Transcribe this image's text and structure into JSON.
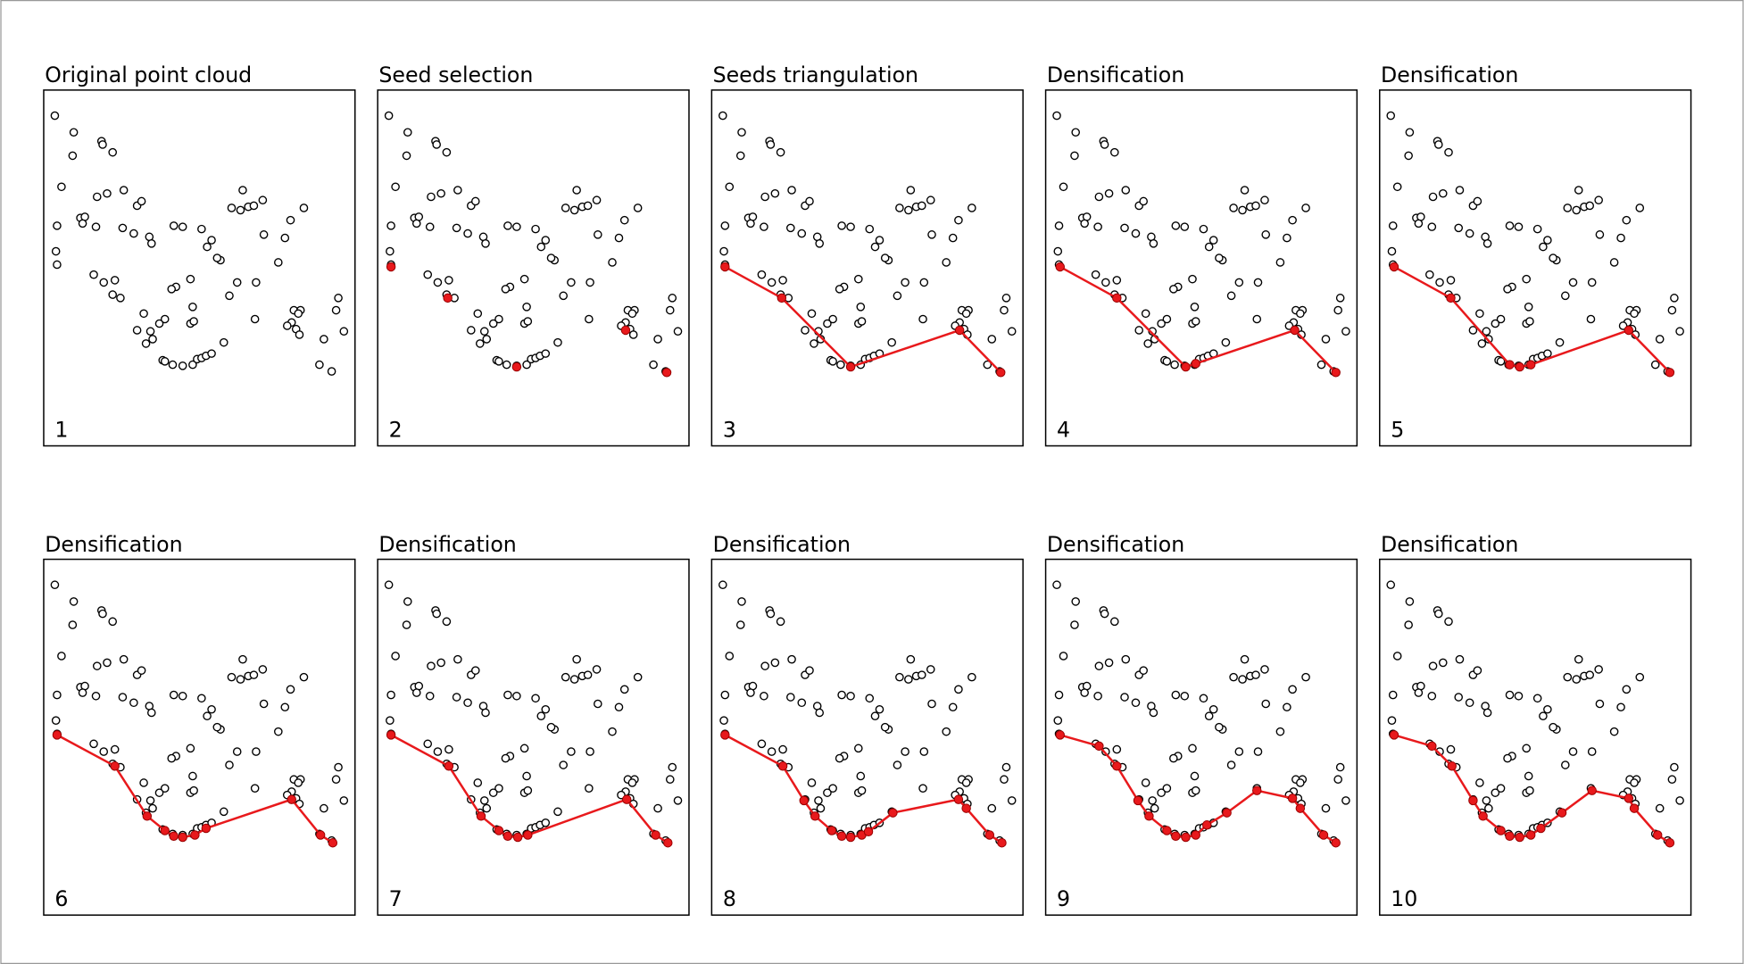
{
  "chart_data": {
    "type": "scatter",
    "xlim": [
      39,
      319
    ],
    "ylim": [
      401,
      81
    ],
    "point_color": "#000000",
    "path_color": "#e8191c",
    "x": [
      49,
      66,
      65,
      91,
      92,
      101,
      55,
      51,
      50,
      51,
      72,
      76,
      74,
      87,
      96,
      111,
      110,
      86,
      123,
      127,
      120,
      134,
      136,
      84,
      93,
      103,
      101,
      108,
      156,
      164,
      181,
      190,
      186,
      198,
      195,
      218,
      208,
      216,
      223,
      228,
      236,
      237,
      256,
      273,
      261,
      250,
      230,
      213,
      206,
      171,
      158,
      154,
      173,
      171,
      174,
      148,
      143,
      129,
      123,
      135,
      137,
      131,
      146,
      148,
      155,
      164,
      173,
      177,
      181,
      185,
      190,
      201,
      229,
      264,
      270,
      268,
      262,
      258,
      266,
      269,
      304,
      302,
      309,
      291,
      287,
      298
    ],
    "y": [
      104,
      119,
      140,
      127,
      130,
      137,
      168,
      203,
      226,
      238,
      196,
      195,
      201,
      177,
      174,
      171,
      205,
      204,
      185,
      181,
      210,
      213,
      219,
      247,
      254,
      252,
      265,
      268,
      203,
      204,
      206,
      216,
      222,
      234,
      232,
      171,
      187,
      189,
      186,
      185,
      180,
      211,
      214,
      187,
      198,
      236,
      254,
      254,
      266,
      251,
      258,
      260,
      276,
      291,
      289,
      287,
      291,
      282,
      297,
      298,
      305,
      309,
      324,
      325,
      328,
      329,
      328,
      323,
      322,
      320,
      318,
      308,
      287,
      279,
      279,
      282,
      290,
      293,
      296,
      301,
      268,
      279,
      298,
      305,
      328,
      334
    ],
    "panels": [
      {
        "title": "Original point cloud",
        "label": "1",
        "connected": false,
        "x": [],
        "y": []
      },
      {
        "title": "Seed selection",
        "label": "2",
        "connected": false,
        "x": [
          51,
          102,
          164,
          262,
          299
        ],
        "y": [
          240,
          268,
          330,
          297,
          335
        ]
      },
      {
        "title": "Seeds triangulation",
        "label": "3",
        "connected": true,
        "x": [
          51,
          102,
          164,
          262,
          299
        ],
        "y": [
          240,
          268,
          330,
          297,
          335
        ]
      },
      {
        "title": "Densification",
        "label": "4",
        "connected": true,
        "x": [
          52,
          103,
          165,
          174,
          263,
          300
        ],
        "y": [
          240,
          268,
          330,
          327,
          297,
          335
        ]
      },
      {
        "title": "Densification",
        "label": "5",
        "connected": true,
        "x": [
          52,
          103,
          156,
          165,
          175,
          263,
          300
        ],
        "y": [
          240,
          268,
          328,
          330,
          328,
          297,
          335
        ]
      },
      {
        "title": "Densification",
        "label": "6",
        "connected": true,
        "x": [
          51,
          103,
          132,
          148,
          156,
          164,
          175,
          185,
          262,
          288,
          299
        ],
        "y": [
          239,
          267,
          312,
          325,
          330,
          331,
          329,
          323,
          297,
          329,
          336
        ]
      },
      {
        "title": "Densification",
        "label": "7",
        "connected": true,
        "x": [
          51,
          103,
          132,
          148,
          156,
          165,
          174,
          263,
          289,
          300
        ],
        "y": [
          239,
          267,
          312,
          325,
          330,
          331,
          329,
          297,
          329,
          336
        ]
      },
      {
        "title": "Densification",
        "label": "8",
        "connected": true,
        "x": [
          51,
          103,
          122,
          132,
          147,
          156,
          164,
          174,
          180,
          202,
          261,
          268,
          289,
          300
        ],
        "y": [
          239,
          267,
          298,
          312,
          325,
          330,
          331,
          329,
          326,
          309,
          297,
          305,
          329,
          336
        ]
      },
      {
        "title": "Densification",
        "label": "9",
        "connected": true,
        "x": [
          52,
          87,
          103,
          122,
          132,
          148,
          156,
          165,
          174,
          184,
          202,
          229,
          261,
          268,
          289,
          300
        ],
        "y": [
          239,
          249,
          267,
          298,
          312,
          325,
          330,
          331,
          329,
          320,
          309,
          289,
          296,
          305,
          329,
          336
        ]
      },
      {
        "title": "Densification",
        "label": "10",
        "connected": true,
        "x": [
          52,
          86,
          104,
          123,
          132,
          148,
          156,
          165,
          175,
          184,
          203,
          230,
          263,
          268,
          289,
          300
        ],
        "y": [
          239,
          249,
          267,
          298,
          312,
          325,
          330,
          331,
          329,
          323,
          309,
          289,
          296,
          305,
          329,
          336
        ]
      }
    ]
  }
}
